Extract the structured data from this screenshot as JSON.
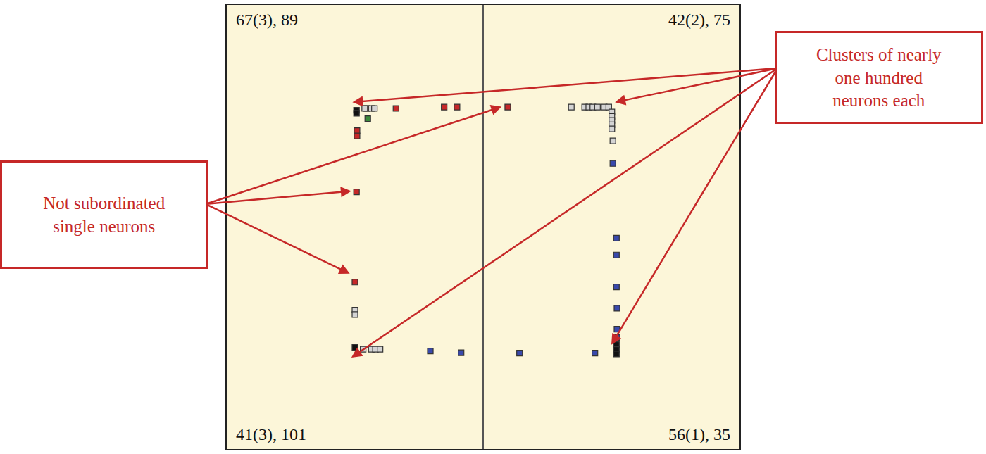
{
  "chart_data": {
    "type": "scatter",
    "marker": "square",
    "xlim": [
      0,
      100
    ],
    "ylim": [
      0,
      100
    ],
    "xticks": [
      50
    ],
    "yticks": [
      50
    ],
    "grid": true,
    "tick_labels": false,
    "series": [
      {
        "color": "#c62828",
        "x": [
          27.3,
          33.0,
          42.4,
          44.9,
          25.4,
          25.4,
          25.3,
          54.8,
          25.0
        ],
        "values": [
          76.7,
          76.7,
          77.0,
          77.0,
          71.7,
          70.5,
          57.9,
          77.0,
          37.6
        ]
      },
      {
        "color": "#d4d4d4",
        "x": [
          26.9,
          28.2,
          28.8,
          67.2,
          69.8,
          70.6,
          71.4,
          72.3,
          73.6,
          74.5,
          75.1,
          75.1,
          75.1,
          75.1,
          75.1,
          75.3,
          25.0,
          25.0,
          26.6,
          28.2,
          29.0,
          29.9
        ],
        "values": [
          76.7,
          76.7,
          76.7,
          77.0,
          77.0,
          77.0,
          77.0,
          77.0,
          77.0,
          77.0,
          75.9,
          74.9,
          74.0,
          73.0,
          72.1,
          69.4,
          31.3,
          30.3,
          22.5,
          22.5,
          22.5,
          22.5
        ]
      },
      {
        "color": "#3949ab",
        "x": [
          75.3,
          76.0,
          76.0,
          76.0,
          76.1,
          76.1,
          76.1,
          57.1,
          71.8,
          39.7,
          45.7
        ],
        "values": [
          64.3,
          47.5,
          43.7,
          36.5,
          31.7,
          27.0,
          25.1,
          21.6,
          21.6,
          22.1,
          21.7
        ]
      },
      {
        "color": "#111111",
        "x": [
          25.3,
          25.3,
          25.0,
          76.0,
          76.0,
          76.0
        ],
        "values": [
          76.3,
          75.6,
          22.9,
          23.5,
          22.4,
          21.4
        ]
      },
      {
        "color": "#3a8a3a",
        "x": [
          27.5
        ],
        "values": [
          74.4
        ]
      }
    ],
    "corner_labels": {
      "top_left": "67(3), 89",
      "top_right": "42(2), 75",
      "bottom_left": "41(3), 101",
      "bottom_right": "56(1), 35"
    },
    "annotations": [
      {
        "text": "Clusters of nearly\none hundred\nneurons each",
        "side": "right",
        "x": [
          24.5,
          75.7,
          24.3,
          75.0
        ],
        "y": [
          78.1,
          78.1,
          20.6,
          23.5
        ]
      },
      {
        "text": "Not subordinated\nsingle neurons",
        "side": "left",
        "x": [
          53.6,
          24.3,
          24.0
        ],
        "y": [
          77.1,
          58.1,
          39.5
        ]
      }
    ]
  }
}
